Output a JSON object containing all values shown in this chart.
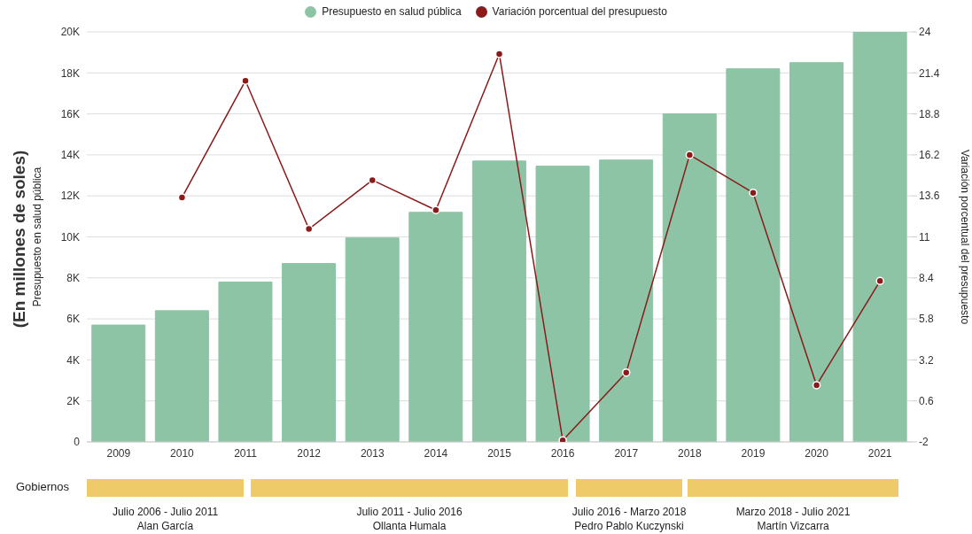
{
  "chart_data": {
    "type": "bar",
    "ylabel": "Presupuesto en salud pública",
    "y2label": "Variación porcentual del presupuesto",
    "categories": [
      "2009",
      "2010",
      "2011",
      "2012",
      "2013",
      "2014",
      "2015",
      "2016",
      "2017",
      "2018",
      "2019",
      "2020",
      "2021"
    ],
    "series": [
      {
        "name": "Presupuesto en salud pública",
        "color": "#8cc4a5",
        "values": [
          5700,
          6400,
          7800,
          8700,
          9950,
          11200,
          13700,
          13450,
          13750,
          16000,
          18200,
          18500,
          20000
        ]
      },
      {
        "name": "Variación porcentual del presupuesto",
        "type": "line",
        "axis": "y2",
        "color": "#8b1a1a",
        "values": [
          null,
          13.5,
          20.9,
          11.5,
          14.6,
          12.7,
          22.6,
          -1.9,
          2.4,
          16.2,
          13.8,
          1.6,
          8.2
        ]
      }
    ],
    "ylim": [
      0,
      20000
    ],
    "yticks": [
      0,
      {
        "value": 2000,
        "label": "2K"
      },
      {
        "value": 4000,
        "label": "4K"
      },
      {
        "value": 6000,
        "label": "6K"
      },
      {
        "value": 8000,
        "label": "8K"
      },
      {
        "value": 10000,
        "label": "10K"
      },
      {
        "value": 12000,
        "label": "12K"
      },
      {
        "value": 14000,
        "label": "14K"
      },
      {
        "value": 16000,
        "label": "16K"
      },
      {
        "value": 18000,
        "label": "18K"
      },
      {
        "value": 20000,
        "label": "20K"
      }
    ],
    "y2lim": [
      -2,
      24
    ],
    "y2ticks": [
      -2,
      0.6,
      3.2,
      5.8,
      8.4,
      11,
      13.6,
      16.2,
      18.8,
      21.4,
      24
    ],
    "grid": "y",
    "legend": "top",
    "marker": "circle",
    "annotations": [
      "(En millones de soles)",
      "Gobiernos",
      "Julio 2006 - Julio 2011",
      "Alan García",
      "Julio 2011 - Julio 2016",
      "Ollanta Humala",
      "Julio 2016 - Marzo 2018",
      "Pedro Pablo Kuczynski",
      "Marzo 2018 - Julio 2021",
      "Martín Vizcarra"
    ]
  }
}
